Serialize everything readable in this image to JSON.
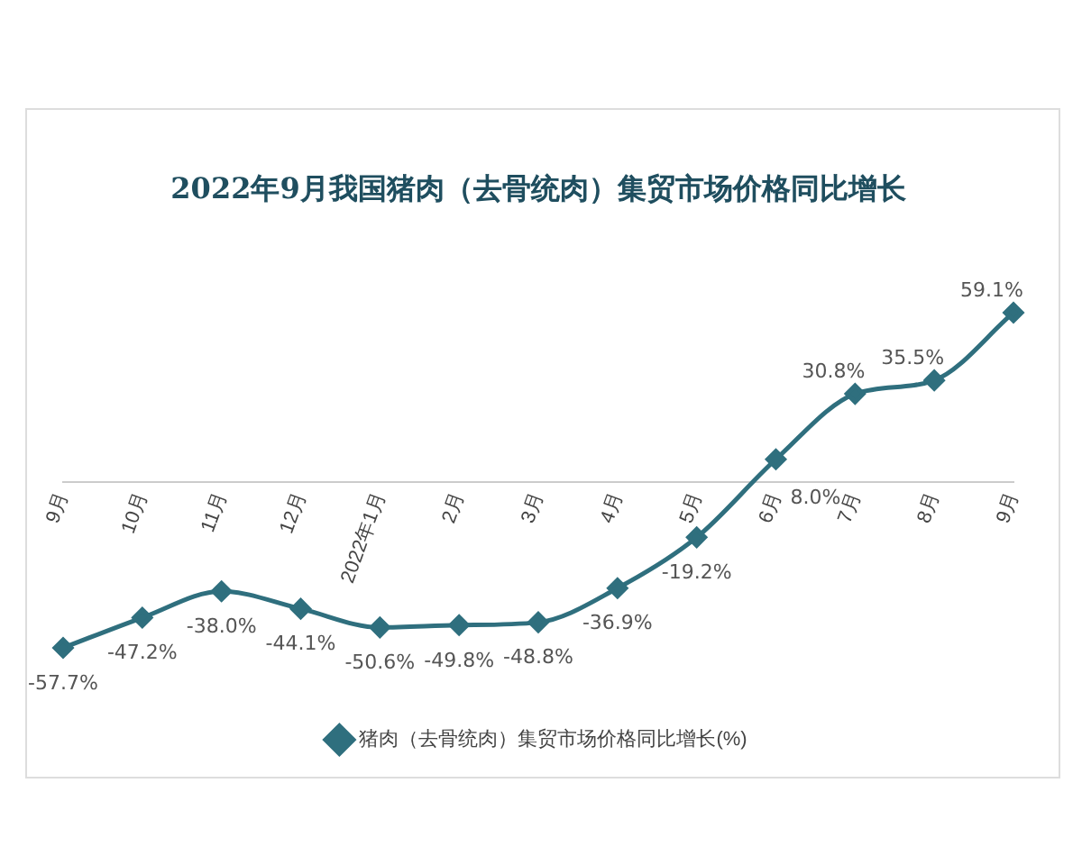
{
  "chart_data": {
    "type": "line",
    "title": "2022年9月我国猪肉（去骨统肉）集贸市场价格同比增长",
    "categories": [
      "9月",
      "10月",
      "11月",
      "12月",
      "2022年1月",
      "2月",
      "3月",
      "4月",
      "5月",
      "6月",
      "7月",
      "8月",
      "9月"
    ],
    "series": [
      {
        "name": "猪肉（去骨统肉）集贸市场价格同比增长(%)",
        "color": "#2f6f7e",
        "values": [
          -57.7,
          -47.2,
          -38.0,
          -44.1,
          -50.6,
          -49.8,
          -48.8,
          -36.9,
          -19.2,
          8.0,
          30.8,
          35.5,
          59.1
        ],
        "value_labels": [
          "-57.7%",
          "-47.2%",
          "-38.0%",
          "-44.1%",
          "-50.6%",
          "-49.8%",
          "-48.8%",
          "-36.9%",
          "-19.2%",
          "8.0%",
          "30.8%",
          "35.5%",
          "59.1%"
        ]
      }
    ],
    "legend": "bottom",
    "marker": "diamond",
    "line_style": "solid"
  }
}
